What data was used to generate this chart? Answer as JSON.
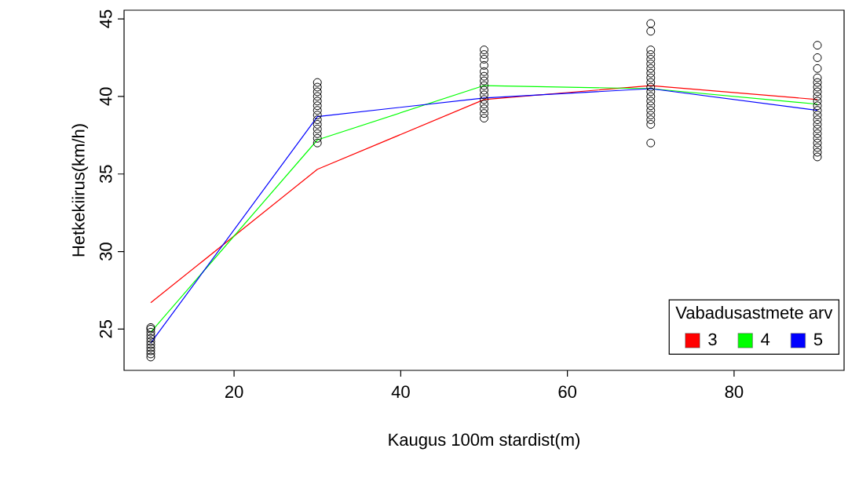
{
  "chart_data": {
    "type": "line",
    "xlabel": "Kaugus 100m stardist(m)",
    "ylabel": "Hetkekiirus(km/h)",
    "legend_title": "Vabadusastmete arv",
    "x": [
      10,
      30,
      50,
      70,
      90
    ],
    "xlim": [
      6.8,
      93.2
    ],
    "xticks": [
      20,
      40,
      60,
      80
    ],
    "ylim": [
      22.34,
      45.56
    ],
    "yticks": [
      25,
      30,
      35,
      40,
      45
    ],
    "grid": false,
    "legend": "bottom right",
    "line_style": "solid",
    "series": [
      {
        "type": "scatter",
        "color": "#000000",
        "marker": "circle",
        "x": [
          10,
          10,
          10,
          10,
          10,
          10,
          10,
          10,
          10,
          10,
          10,
          30,
          30,
          30,
          30,
          30,
          30,
          30,
          30,
          30,
          30,
          30,
          30,
          30,
          30,
          50,
          50,
          50,
          50,
          50,
          50,
          50,
          50,
          50,
          50,
          50,
          50,
          50,
          50,
          50,
          70,
          70,
          70,
          70,
          70,
          70,
          70,
          70,
          70,
          70,
          70,
          70,
          70,
          70,
          70,
          70,
          70,
          70,
          70,
          70,
          90,
          90,
          90,
          90,
          90,
          90,
          90,
          90,
          90,
          90,
          90,
          90,
          90,
          90,
          90,
          90,
          90,
          90,
          90,
          90,
          90
        ],
        "values": [
          23.2,
          23.4,
          23.6,
          23.8,
          24.0,
          24.2,
          24.4,
          24.6,
          24.8,
          25.0,
          25.1,
          37.0,
          37.3,
          37.6,
          37.9,
          38.2,
          38.5,
          38.8,
          39.1,
          39.4,
          39.7,
          40.0,
          40.3,
          40.6,
          40.9,
          38.6,
          38.9,
          39.2,
          39.5,
          39.8,
          40.1,
          40.4,
          40.7,
          41.0,
          41.3,
          41.6,
          42.0,
          42.4,
          42.7,
          43.0,
          37.0,
          38.2,
          38.5,
          38.8,
          39.1,
          39.4,
          39.7,
          40.0,
          40.3,
          40.6,
          40.9,
          41.2,
          41.5,
          41.8,
          42.1,
          42.4,
          42.7,
          43.0,
          44.2,
          44.7,
          36.1,
          36.4,
          36.7,
          37.0,
          37.3,
          37.6,
          37.9,
          38.2,
          38.5,
          38.8,
          39.1,
          39.4,
          39.7,
          40.0,
          40.3,
          40.6,
          40.9,
          41.2,
          41.8,
          42.5,
          43.3
        ]
      },
      {
        "name": "3",
        "color": "#ff0000",
        "values": [
          26.7,
          35.3,
          39.8,
          40.7,
          39.8
        ]
      },
      {
        "name": "4",
        "color": "#00ff00",
        "values": [
          24.8,
          37.2,
          40.7,
          40.5,
          39.5
        ]
      },
      {
        "name": "5",
        "color": "#0000ff",
        "values": [
          24.1,
          38.7,
          39.9,
          40.5,
          39.1
        ]
      }
    ]
  }
}
